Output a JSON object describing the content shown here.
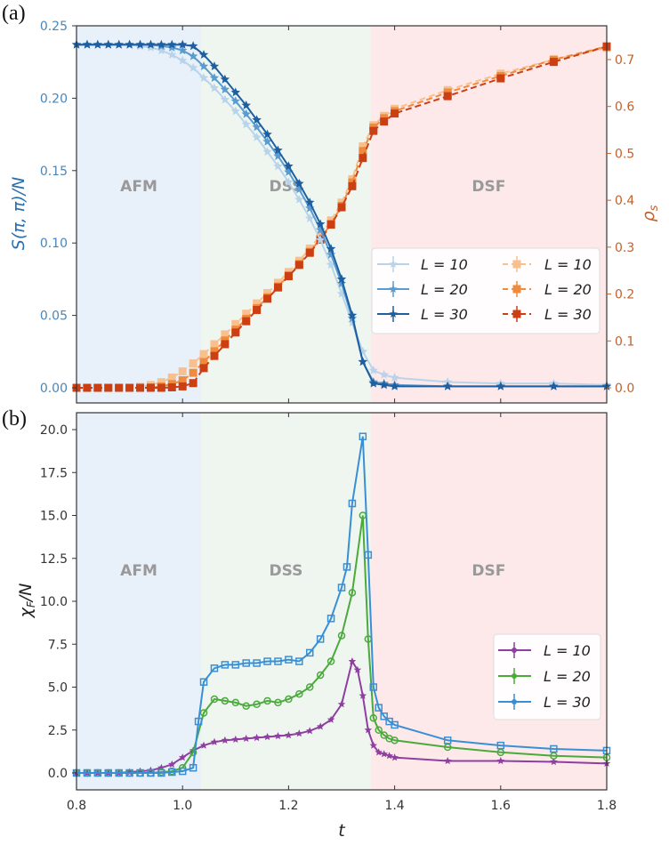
{
  "panels": {
    "a_label": "(a)",
    "b_label": "(b)"
  },
  "regions": [
    {
      "name": "AFM",
      "from": 0.8,
      "to": 1.035,
      "color": "#e8f0fa"
    },
    {
      "name": "DSS",
      "from": 1.035,
      "to": 1.355,
      "color": "#eef6ef"
    },
    {
      "name": "DSF",
      "from": 1.355,
      "to": 1.8,
      "color": "#fde9ea"
    }
  ],
  "chart_data": [
    {
      "type": "line",
      "panel": "a",
      "title": "",
      "xlabel": "",
      "ylabel": "S(π, π)/N",
      "ylabel_right": "ρ_s",
      "xlim": [
        0.8,
        1.8
      ],
      "ylim": [
        -0.01,
        0.25
      ],
      "ylim_right": [
        -0.03,
        0.76
      ],
      "xticks": [
        0.8,
        1.0,
        1.2,
        1.4,
        1.6,
        1.8
      ],
      "yticks": [
        "0.00",
        "0.05",
        "0.10",
        "0.15",
        "0.20",
        "0.25"
      ],
      "yticks_right": [
        "0.0",
        "0.1",
        "0.2",
        "0.3",
        "0.4",
        "0.5",
        "0.6",
        "0.7"
      ],
      "region_labels": [
        "AFM",
        "DSS",
        "DSF"
      ],
      "legend": "center-right (two columns)",
      "series": [
        {
          "name": "L = 10",
          "axis": "left",
          "color": "#b9d4ea",
          "marker": "star",
          "linestyle": "solid",
          "x": [
            0.8,
            0.82,
            0.84,
            0.86,
            0.88,
            0.9,
            0.92,
            0.94,
            0.96,
            0.98,
            1.0,
            1.02,
            1.04,
            1.06,
            1.08,
            1.1,
            1.12,
            1.14,
            1.16,
            1.18,
            1.2,
            1.22,
            1.24,
            1.26,
            1.28,
            1.3,
            1.32,
            1.34,
            1.36,
            1.38,
            1.4,
            1.5,
            1.6,
            1.7,
            1.8
          ],
          "y": [
            0.237,
            0.237,
            0.237,
            0.237,
            0.237,
            0.237,
            0.236,
            0.235,
            0.233,
            0.23,
            0.226,
            0.221,
            0.214,
            0.207,
            0.199,
            0.191,
            0.182,
            0.173,
            0.163,
            0.153,
            0.142,
            0.13,
            0.117,
            0.102,
            0.085,
            0.065,
            0.045,
            0.025,
            0.012,
            0.009,
            0.007,
            0.004,
            0.003,
            0.003,
            0.002
          ]
        },
        {
          "name": "L = 20",
          "axis": "left",
          "color": "#5a9bd0",
          "marker": "star",
          "linestyle": "solid",
          "x": [
            0.8,
            0.82,
            0.84,
            0.86,
            0.88,
            0.9,
            0.92,
            0.94,
            0.96,
            0.98,
            1.0,
            1.02,
            1.04,
            1.06,
            1.08,
            1.1,
            1.12,
            1.14,
            1.16,
            1.18,
            1.2,
            1.22,
            1.24,
            1.26,
            1.28,
            1.3,
            1.32,
            1.34,
            1.36,
            1.38,
            1.4,
            1.5,
            1.6,
            1.7,
            1.8
          ],
          "y": [
            0.237,
            0.237,
            0.237,
            0.237,
            0.237,
            0.237,
            0.237,
            0.237,
            0.236,
            0.235,
            0.233,
            0.229,
            0.222,
            0.214,
            0.206,
            0.198,
            0.189,
            0.18,
            0.17,
            0.16,
            0.149,
            0.137,
            0.124,
            0.109,
            0.092,
            0.072,
            0.048,
            0.018,
            0.004,
            0.003,
            0.002,
            0.001,
            0.001,
            0.001,
            0.001
          ]
        },
        {
          "name": "L = 30",
          "axis": "left",
          "color": "#1f5fa0",
          "marker": "star",
          "linestyle": "solid",
          "x": [
            0.8,
            0.82,
            0.84,
            0.86,
            0.88,
            0.9,
            0.92,
            0.94,
            0.96,
            0.98,
            1.0,
            1.02,
            1.04,
            1.06,
            1.08,
            1.1,
            1.12,
            1.14,
            1.16,
            1.18,
            1.2,
            1.22,
            1.24,
            1.26,
            1.28,
            1.3,
            1.32,
            1.34,
            1.36,
            1.38,
            1.4,
            1.5,
            1.6,
            1.7,
            1.8
          ],
          "y": [
            0.237,
            0.237,
            0.237,
            0.237,
            0.237,
            0.237,
            0.237,
            0.237,
            0.237,
            0.237,
            0.237,
            0.236,
            0.23,
            0.222,
            0.213,
            0.204,
            0.195,
            0.185,
            0.175,
            0.164,
            0.153,
            0.141,
            0.128,
            0.113,
            0.096,
            0.075,
            0.05,
            0.018,
            0.003,
            0.002,
            0.001,
            0.001,
            0.001,
            0.001,
            0.001
          ]
        },
        {
          "name": "L = 10",
          "axis": "right",
          "color": "#f9c08f",
          "marker": "square",
          "linestyle": "dashed",
          "x": [
            0.8,
            0.82,
            0.84,
            0.86,
            0.88,
            0.9,
            0.92,
            0.94,
            0.96,
            0.98,
            1.0,
            1.02,
            1.04,
            1.06,
            1.08,
            1.1,
            1.12,
            1.14,
            1.16,
            1.18,
            1.2,
            1.22,
            1.24,
            1.26,
            1.28,
            1.3,
            1.32,
            1.34,
            1.36,
            1.38,
            1.4,
            1.5,
            1.6,
            1.7,
            1.8
          ],
          "y": [
            0.0,
            0.0,
            0.0,
            0.0,
            0.0,
            0.0,
            0.002,
            0.006,
            0.012,
            0.022,
            0.035,
            0.052,
            0.072,
            0.093,
            0.114,
            0.136,
            0.158,
            0.18,
            0.202,
            0.224,
            0.247,
            0.271,
            0.297,
            0.325,
            0.357,
            0.395,
            0.445,
            0.515,
            0.56,
            0.58,
            0.595,
            0.635,
            0.67,
            0.7,
            0.725
          ]
        },
        {
          "name": "L = 20",
          "axis": "right",
          "color": "#f08a3c",
          "marker": "square",
          "linestyle": "dashed",
          "x": [
            0.8,
            0.82,
            0.84,
            0.86,
            0.88,
            0.9,
            0.92,
            0.94,
            0.96,
            0.98,
            1.0,
            1.02,
            1.04,
            1.06,
            1.08,
            1.1,
            1.12,
            1.14,
            1.16,
            1.18,
            1.2,
            1.22,
            1.24,
            1.26,
            1.28,
            1.3,
            1.32,
            1.34,
            1.36,
            1.38,
            1.4,
            1.5,
            1.6,
            1.7,
            1.8
          ],
          "y": [
            0.0,
            0.0,
            0.0,
            0.0,
            0.0,
            0.0,
            0.0,
            0.001,
            0.003,
            0.008,
            0.016,
            0.032,
            0.055,
            0.078,
            0.101,
            0.124,
            0.147,
            0.17,
            0.193,
            0.216,
            0.24,
            0.264,
            0.29,
            0.318,
            0.35,
            0.388,
            0.438,
            0.505,
            0.555,
            0.575,
            0.59,
            0.63,
            0.665,
            0.7,
            0.728
          ]
        },
        {
          "name": "L = 30",
          "axis": "right",
          "color": "#cc3f12",
          "marker": "square",
          "linestyle": "dashed",
          "x": [
            0.8,
            0.82,
            0.84,
            0.86,
            0.88,
            0.9,
            0.92,
            0.94,
            0.96,
            0.98,
            1.0,
            1.02,
            1.04,
            1.06,
            1.08,
            1.1,
            1.12,
            1.14,
            1.16,
            1.18,
            1.2,
            1.22,
            1.24,
            1.26,
            1.28,
            1.3,
            1.32,
            1.34,
            1.36,
            1.38,
            1.4,
            1.5,
            1.6,
            1.7,
            1.8
          ],
          "y": [
            0.0,
            0.0,
            0.0,
            0.0,
            0.0,
            0.0,
            0.0,
            0.0,
            0.0,
            0.001,
            0.003,
            0.01,
            0.042,
            0.068,
            0.093,
            0.118,
            0.142,
            0.166,
            0.19,
            0.214,
            0.238,
            0.262,
            0.288,
            0.316,
            0.348,
            0.385,
            0.43,
            0.49,
            0.548,
            0.568,
            0.585,
            0.622,
            0.66,
            0.695,
            0.728
          ]
        }
      ]
    },
    {
      "type": "line",
      "panel": "b",
      "title": "",
      "xlabel": "t",
      "ylabel": "χ_F/N",
      "xlim": [
        0.8,
        1.8
      ],
      "ylim": [
        -1.0,
        20.7
      ],
      "xticks": [
        "0.8",
        "1.0",
        "1.2",
        "1.4",
        "1.6",
        "1.8"
      ],
      "yticks": [
        "0.0",
        "2.5",
        "5.0",
        "7.5",
        "10.0",
        "12.5",
        "15.0",
        "17.5",
        "20.0"
      ],
      "region_labels": [
        "AFM",
        "DSS",
        "DSF"
      ],
      "legend": "lower-right",
      "series": [
        {
          "name": "L = 10",
          "color": "#8e3fa0",
          "marker": "star",
          "x": [
            0.8,
            0.82,
            0.84,
            0.86,
            0.88,
            0.9,
            0.92,
            0.94,
            0.96,
            0.98,
            1.0,
            1.02,
            1.04,
            1.06,
            1.08,
            1.1,
            1.12,
            1.14,
            1.16,
            1.18,
            1.2,
            1.22,
            1.24,
            1.26,
            1.28,
            1.3,
            1.32,
            1.33,
            1.34,
            1.35,
            1.36,
            1.37,
            1.38,
            1.39,
            1.4,
            1.5,
            1.6,
            1.7,
            1.8
          ],
          "y": [
            0.0,
            0.0,
            0.0,
            0.0,
            0.0,
            0.05,
            0.1,
            0.15,
            0.3,
            0.5,
            0.9,
            1.3,
            1.6,
            1.8,
            1.9,
            1.95,
            2.0,
            2.05,
            2.1,
            2.15,
            2.2,
            2.3,
            2.45,
            2.7,
            3.1,
            4.0,
            6.5,
            6.0,
            4.5,
            2.5,
            1.6,
            1.2,
            1.1,
            1.0,
            0.9,
            0.7,
            0.7,
            0.65,
            0.55
          ]
        },
        {
          "name": "L = 20",
          "color": "#4aaa3c",
          "marker": "circle",
          "x": [
            0.8,
            0.82,
            0.84,
            0.86,
            0.88,
            0.9,
            0.92,
            0.94,
            0.96,
            0.98,
            1.0,
            1.02,
            1.04,
            1.06,
            1.08,
            1.1,
            1.12,
            1.14,
            1.16,
            1.18,
            1.2,
            1.22,
            1.24,
            1.26,
            1.28,
            1.3,
            1.32,
            1.34,
            1.35,
            1.36,
            1.37,
            1.38,
            1.39,
            1.4,
            1.5,
            1.6,
            1.7,
            1.8
          ],
          "y": [
            0.0,
            0.0,
            0.0,
            0.0,
            0.0,
            0.0,
            0.0,
            0.0,
            0.05,
            0.1,
            0.3,
            1.2,
            3.5,
            4.3,
            4.2,
            4.1,
            3.9,
            4.0,
            4.2,
            4.1,
            4.3,
            4.6,
            5.0,
            5.7,
            6.5,
            8.0,
            10.5,
            15.0,
            7.8,
            3.2,
            2.5,
            2.2,
            2.0,
            1.9,
            1.5,
            1.2,
            1.0,
            0.9
          ]
        },
        {
          "name": "L = 30",
          "color": "#3a8fd4",
          "marker": "square-open",
          "x": [
            0.8,
            0.82,
            0.84,
            0.86,
            0.88,
            0.9,
            0.92,
            0.94,
            0.96,
            0.98,
            1.0,
            1.02,
            1.03,
            1.04,
            1.06,
            1.08,
            1.1,
            1.12,
            1.14,
            1.16,
            1.18,
            1.2,
            1.22,
            1.24,
            1.26,
            1.28,
            1.3,
            1.31,
            1.32,
            1.34,
            1.35,
            1.36,
            1.37,
            1.38,
            1.39,
            1.4,
            1.5,
            1.6,
            1.7,
            1.8
          ],
          "y": [
            0.0,
            0.0,
            0.0,
            0.0,
            0.0,
            0.0,
            0.0,
            0.0,
            0.0,
            0.05,
            0.1,
            0.3,
            3.0,
            5.3,
            6.1,
            6.3,
            6.3,
            6.4,
            6.4,
            6.5,
            6.5,
            6.6,
            6.5,
            7.0,
            7.8,
            9.0,
            10.8,
            12.0,
            15.7,
            19.6,
            12.7,
            5.0,
            3.8,
            3.3,
            3.0,
            2.8,
            1.9,
            1.6,
            1.4,
            1.3
          ]
        }
      ]
    }
  ]
}
